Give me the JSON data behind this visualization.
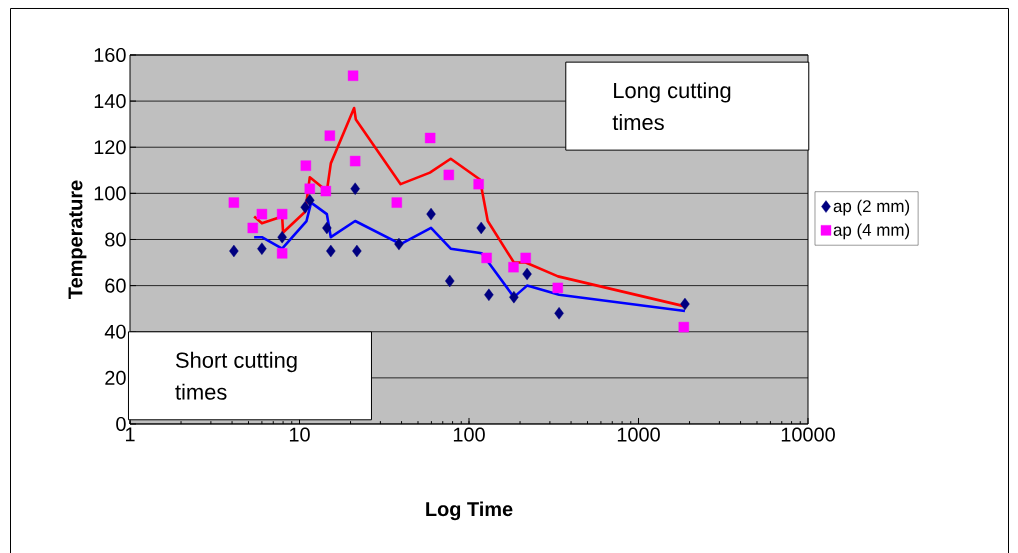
{
  "chart_data": {
    "type": "scatter",
    "xlabel": "Log Time",
    "ylabel": "Temperature",
    "log": "x",
    "xlim": [
      1,
      10000
    ],
    "xticks": [
      1,
      10,
      100,
      1000,
      10000
    ],
    "ylim": [
      0,
      160
    ],
    "yticks": [
      0,
      20,
      40,
      60,
      80,
      100,
      120,
      140,
      160
    ],
    "grid": "y",
    "legend": "right",
    "annotations": [
      "Long cutting times",
      "Short cutting times"
    ],
    "series": [
      {
        "name": "ap (2 mm)",
        "color": "#000080",
        "marker": "diamond",
        "x": [
          4.1,
          6.0,
          7.9,
          10.8,
          11.5,
          14.5,
          15.3,
          21.3,
          21.8,
          38.6,
          59.7,
          77,
          118,
          131,
          184,
          220,
          340,
          1880
        ],
        "values": [
          75,
          76,
          81,
          94,
          97,
          85,
          75,
          102,
          75,
          78,
          91,
          62,
          85,
          56,
          55,
          65,
          48,
          52
        ]
      },
      {
        "name": "ap (4 mm)",
        "color": "#ff00ff",
        "marker": "square",
        "x": [
          4.1,
          5.3,
          6.0,
          7.9,
          7.9,
          10.9,
          11.5,
          14.3,
          15.1,
          20.7,
          21.3,
          37.5,
          59,
          76,
          114,
          127,
          183,
          216,
          334,
          1850
        ],
        "values": [
          96,
          85,
          91,
          91,
          74,
          112,
          102,
          101,
          125,
          151,
          114,
          96,
          124,
          108,
          104,
          72,
          68,
          72,
          59,
          42
        ]
      },
      {
        "type": "line",
        "color": "#ff0000",
        "marker": "none",
        "x": [
          5.4,
          6.0,
          7.9,
          8.0,
          10.8,
          11.5,
          14.5,
          15.3,
          21,
          21.5,
          39.5,
          58.8,
          78,
          116,
          129,
          184,
          216,
          335,
          1880
        ],
        "values": [
          90,
          87,
          90,
          83,
          92,
          107,
          101,
          113,
          137,
          132,
          104,
          109,
          115,
          106,
          88,
          70,
          70,
          64,
          51
        ]
      },
      {
        "type": "line",
        "color": "#0000ff",
        "marker": "none",
        "x": [
          5.4,
          6.0,
          7.9,
          11.0,
          11.7,
          14.5,
          15.3,
          21.3,
          39.5,
          59.7,
          78,
          119,
          184,
          220,
          340,
          1880
        ],
        "values": [
          81,
          81,
          76,
          88,
          96,
          91,
          81,
          88,
          78,
          85,
          76,
          74,
          55,
          60,
          56,
          49
        ]
      }
    ]
  }
}
